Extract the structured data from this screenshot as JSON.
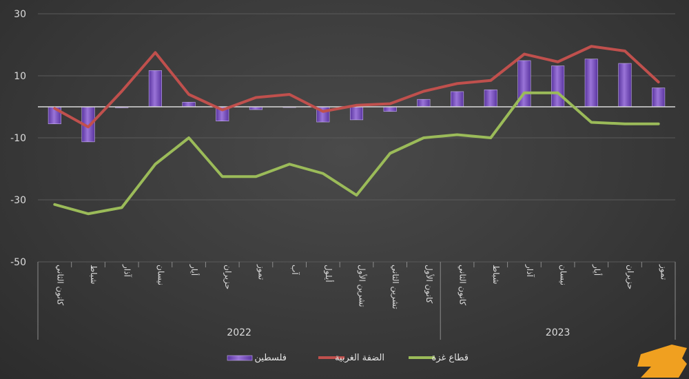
{
  "chart_data": {
    "type": "bar+line",
    "years": [
      "2022",
      "2023"
    ],
    "categories": [
      "كانون الثاني",
      "شباط",
      "آذار",
      "نيسان",
      "أيار",
      "حزيران",
      "تموز",
      "آب",
      "أيلول",
      "تشرين الأول",
      "تشرين الثاني",
      "كانون الأول",
      "كانون الثاني",
      "شباط",
      "آذار",
      "نيسان",
      "أيار",
      "حزيران",
      "تموز"
    ],
    "ylim": [
      -50,
      30
    ],
    "yticks": [
      30,
      10,
      -10,
      -30,
      -50
    ],
    "grid": true,
    "legend_position": "bottom",
    "series": [
      {
        "name": "فلسطين",
        "type": "bar",
        "color": "#7a4fc0",
        "values": [
          -5.5,
          -11.3,
          -0.3,
          11.7,
          1.5,
          -4.6,
          -0.9,
          -0.1,
          -4.9,
          -4.2,
          -1.5,
          2.4,
          4.9,
          5.5,
          14.9,
          13.2,
          15.4,
          14.0,
          6.1
        ]
      },
      {
        "name": "الضفة الغربية",
        "type": "line",
        "color": "#c0504d",
        "values": [
          -0.5,
          -6.5,
          5.0,
          17.5,
          4.0,
          -1.0,
          3.0,
          4.0,
          -1.5,
          0.5,
          1.0,
          5.0,
          7.5,
          8.5,
          17.0,
          14.5,
          19.5,
          18.0,
          8.0
        ]
      },
      {
        "name": "قطاع غزة",
        "type": "line",
        "color": "#9bbb59",
        "values": [
          -31.5,
          -34.5,
          -32.5,
          -18.5,
          -10.0,
          -22.5,
          -22.5,
          -18.5,
          -21.5,
          -28.5,
          -15.0,
          -10.0,
          -9.0,
          -10.0,
          4.5,
          4.5,
          -5.0,
          -5.5,
          -5.5
        ]
      }
    ]
  }
}
